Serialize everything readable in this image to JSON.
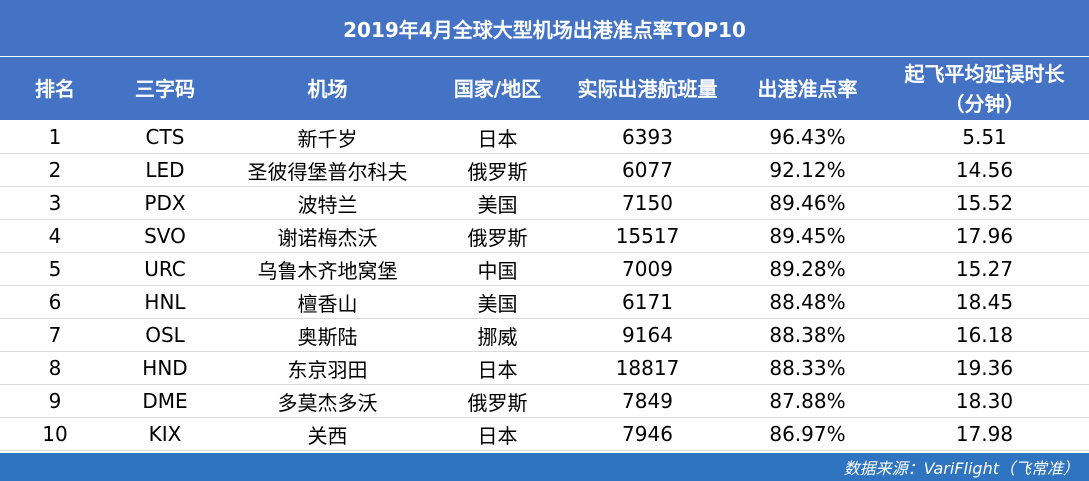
{
  "title": "2019年4月全球大型机场出港准点率TOP10",
  "headers": [
    "排名",
    "三字码",
    "机场",
    "国家/地区",
    "实际出港航班量",
    "出港准点率"
  ],
  "header_last": {
    "line1": "起飞平均延误时长",
    "line2": "（分钟）"
  },
  "rows": [
    {
      "rank": "1",
      "code": "CTS",
      "airport": "新千岁",
      "country": "日本",
      "flights": "6393",
      "rate": "96.43%",
      "delay": "5.51"
    },
    {
      "rank": "2",
      "code": "LED",
      "airport": "圣彼得堡普尔科夫",
      "country": "俄罗斯",
      "flights": "6077",
      "rate": "92.12%",
      "delay": "14.56"
    },
    {
      "rank": "3",
      "code": "PDX",
      "airport": "波特兰",
      "country": "美国",
      "flights": "7150",
      "rate": "89.46%",
      "delay": "15.52"
    },
    {
      "rank": "4",
      "code": "SVO",
      "airport": "谢诺梅杰沃",
      "country": "俄罗斯",
      "flights": "15517",
      "rate": "89.45%",
      "delay": "17.96"
    },
    {
      "rank": "5",
      "code": "URC",
      "airport": "乌鲁木齐地窝堡",
      "country": "中国",
      "flights": "7009",
      "rate": "89.28%",
      "delay": "15.27"
    },
    {
      "rank": "6",
      "code": "HNL",
      "airport": "檀香山",
      "country": "美国",
      "flights": "6171",
      "rate": "88.48%",
      "delay": "18.45"
    },
    {
      "rank": "7",
      "code": "OSL",
      "airport": "奥斯陆",
      "country": "挪威",
      "flights": "9164",
      "rate": "88.38%",
      "delay": "16.18"
    },
    {
      "rank": "8",
      "code": "HND",
      "airport": "东京羽田",
      "country": "日本",
      "flights": "18817",
      "rate": "88.33%",
      "delay": "19.36"
    },
    {
      "rank": "9",
      "code": "DME",
      "airport": "多莫杰多沃",
      "country": "俄罗斯",
      "flights": "7849",
      "rate": "87.88%",
      "delay": "18.30"
    },
    {
      "rank": "10",
      "code": "KIX",
      "airport": "关西",
      "country": "日本",
      "flights": "7946",
      "rate": "86.97%",
      "delay": "17.98"
    }
  ],
  "footer": "数据来源：VariFlight（飞常准）",
  "colors": {
    "header_bg": "#4472c4",
    "footer_bg": "#2f74c0"
  }
}
